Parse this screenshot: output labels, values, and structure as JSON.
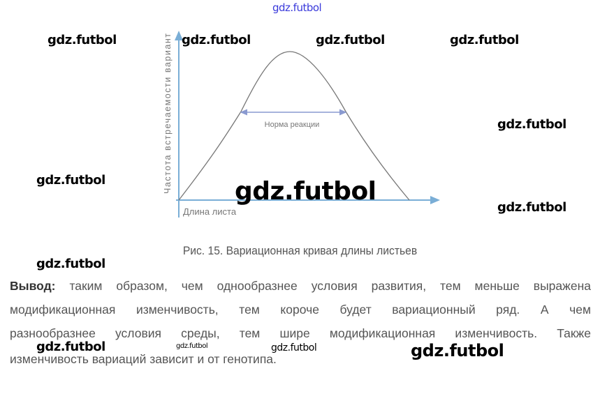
{
  "diagram": {
    "y_axis_label": "Частота встречаемости вариант",
    "x_axis_label": "Длина листа",
    "range_label": "Норма реакции",
    "axis_color": "#7aaed6",
    "curve_color": "#777777"
  },
  "caption": "Рис. 15. Вариационная кривая длины листьев",
  "conclusion": {
    "lead": "Вывод:",
    "lines": [
      " таким образом, чем однообразнее условия развития, тем меньше выражена",
      "модификационная изменчивость, тем короче будет вариационный ряд. А чем",
      "разнообразнее условия среды, тем шире модификационная изменчивость. Также",
      "изменчивость вариаций зависит и от генотипа."
    ]
  },
  "watermark": "gdz.futbol"
}
